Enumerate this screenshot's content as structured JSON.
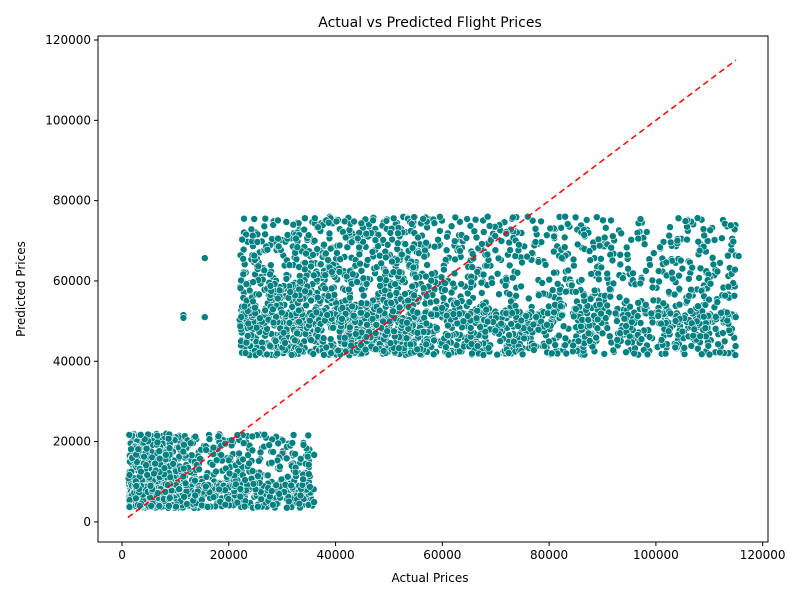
{
  "chart_data": {
    "type": "scatter",
    "title": "Actual vs Predicted Flight Prices",
    "xlabel": "Actual Prices",
    "ylabel": "Predicted Prices",
    "xlim": [
      -4500,
      121000
    ],
    "ylim": [
      -5000,
      121000
    ],
    "xticks": [
      0,
      20000,
      40000,
      60000,
      80000,
      100000,
      120000
    ],
    "yticks": [
      0,
      20000,
      40000,
      60000,
      80000,
      100000,
      120000
    ],
    "grid": false,
    "point_color": "#008080",
    "point_edge_color": "#ffffff",
    "reference_line": {
      "style": "dashed",
      "color": "#ff0000",
      "from": [
        1100,
        1100
      ],
      "to": [
        115000,
        115000
      ]
    },
    "clusters": [
      {
        "x_range": [
          1200,
          36000
        ],
        "y_range": [
          3500,
          22000
        ],
        "count": 1400,
        "x_center": 9000,
        "y_center": 9000
      },
      {
        "x_range": [
          22000,
          115000
        ],
        "y_range": [
          41500,
          76000
        ],
        "count": 2600,
        "x_center": 55000,
        "y_center": 52000
      }
    ],
    "sample_points": [
      {
        "x": 11500,
        "y": 51500
      },
      {
        "x": 11500,
        "y": 50800
      },
      {
        "x": 15500,
        "y": 51000
      },
      {
        "x": 15500,
        "y": 65700
      },
      {
        "x": 68500,
        "y": 76000
      },
      {
        "x": 76000,
        "y": 76000
      },
      {
        "x": 83000,
        "y": 76000
      },
      {
        "x": 3500,
        "y": 21700
      },
      {
        "x": 34000,
        "y": 19200
      },
      {
        "x": 35000,
        "y": 11900
      },
      {
        "x": 36000,
        "y": 16700
      },
      {
        "x": 24500,
        "y": 71300
      },
      {
        "x": 111000,
        "y": 70200
      },
      {
        "x": 112000,
        "y": 64500
      },
      {
        "x": 114500,
        "y": 69800
      },
      {
        "x": 114800,
        "y": 62800
      },
      {
        "x": 114700,
        "y": 56300
      },
      {
        "x": 115500,
        "y": 66200
      },
      {
        "x": 106500,
        "y": 52500
      },
      {
        "x": 106200,
        "y": 56300
      },
      {
        "x": 102500,
        "y": 71300
      },
      {
        "x": 85500,
        "y": 45000
      },
      {
        "x": 80500,
        "y": 42000
      },
      {
        "x": 83000,
        "y": 44000
      }
    ]
  }
}
